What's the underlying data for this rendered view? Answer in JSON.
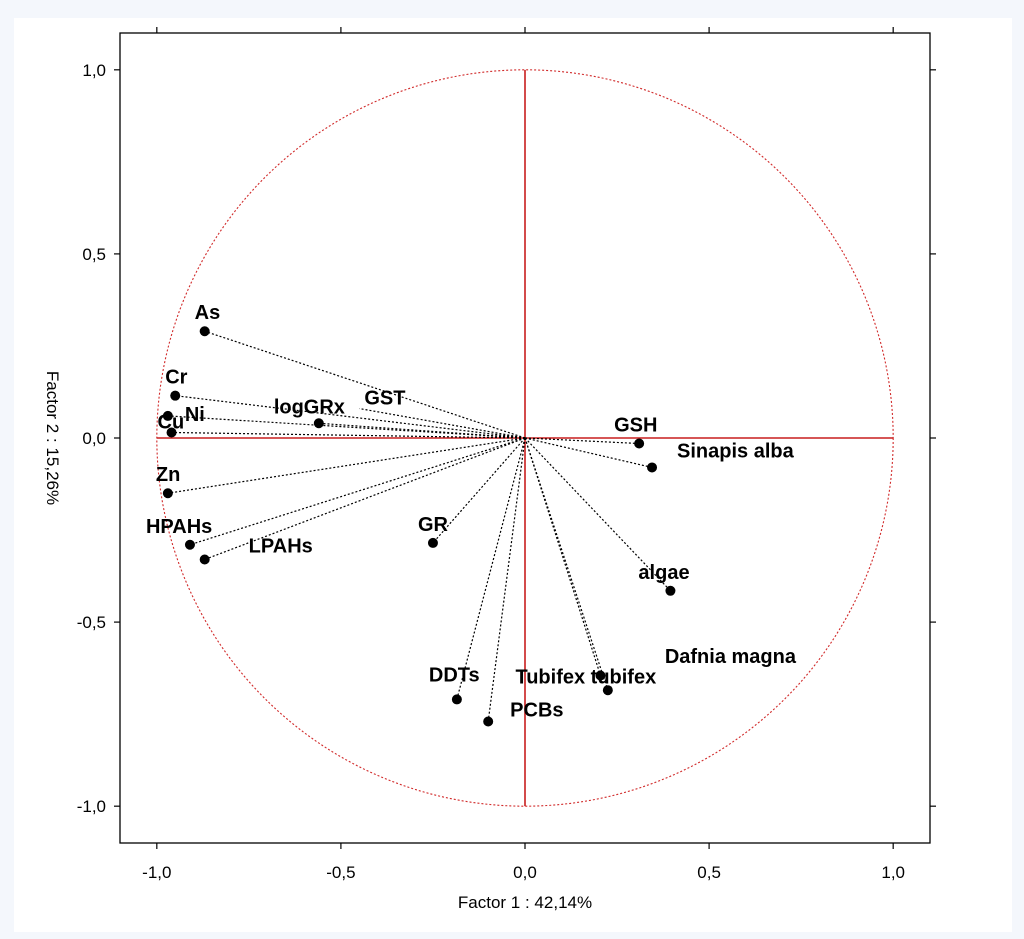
{
  "chart_data": {
    "type": "scatter",
    "title": "",
    "xlabel": "Factor 1 : 42,14%",
    "ylabel": "Factor 2 : 15,26%",
    "xlim": [
      -1.1,
      1.1
    ],
    "ylim": [
      -1.1,
      1.1
    ],
    "xticks": [
      -1.0,
      -0.5,
      0.0,
      0.5,
      1.0
    ],
    "yticks": [
      -1.0,
      -0.5,
      0.0,
      0.5,
      1.0
    ],
    "xtick_labels": [
      "-1,0",
      "-0,5",
      "0,0",
      "0,5",
      "1,0"
    ],
    "ytick_labels": [
      "-1,0",
      "-0,5",
      "0,0",
      "0,5",
      "1,0"
    ],
    "unit_circle": true,
    "grid": false,
    "colors": {
      "circle": "#d12a2a",
      "axes": "#c81e1e",
      "points": "#000000",
      "vectors": "#000000"
    },
    "points": [
      {
        "label": "As",
        "x": -0.87,
        "y": 0.29
      },
      {
        "label": "Cr",
        "x": -0.95,
        "y": 0.115
      },
      {
        "label": "Ni",
        "x": -0.97,
        "y": 0.06
      },
      {
        "label": "Cu",
        "x": -0.96,
        "y": 0.015
      },
      {
        "label": "logGRx",
        "x": -0.56,
        "y": 0.04
      },
      {
        "label": "GST",
        "x": -0.45,
        "y": 0.08
      },
      {
        "label": "Zn",
        "x": -0.97,
        "y": -0.15
      },
      {
        "label": "HPAHs",
        "x": -0.91,
        "y": -0.29
      },
      {
        "label": "LPAHs",
        "x": -0.87,
        "y": -0.33
      },
      {
        "label": "GR",
        "x": -0.25,
        "y": -0.285
      },
      {
        "label": "GSH",
        "x": 0.31,
        "y": -0.015
      },
      {
        "label": "Sinapis alba",
        "x": 0.345,
        "y": -0.08
      },
      {
        "label": "algae",
        "x": 0.395,
        "y": -0.415
      },
      {
        "label": "Dafnia magna",
        "x": 0.225,
        "y": -0.685
      },
      {
        "label": "Tubifex tubifex",
        "x": 0.205,
        "y": -0.645
      },
      {
        "label": "DDTs",
        "x": -0.185,
        "y": -0.71
      },
      {
        "label": "PCBs",
        "x": -0.1,
        "y": -0.77
      }
    ]
  }
}
